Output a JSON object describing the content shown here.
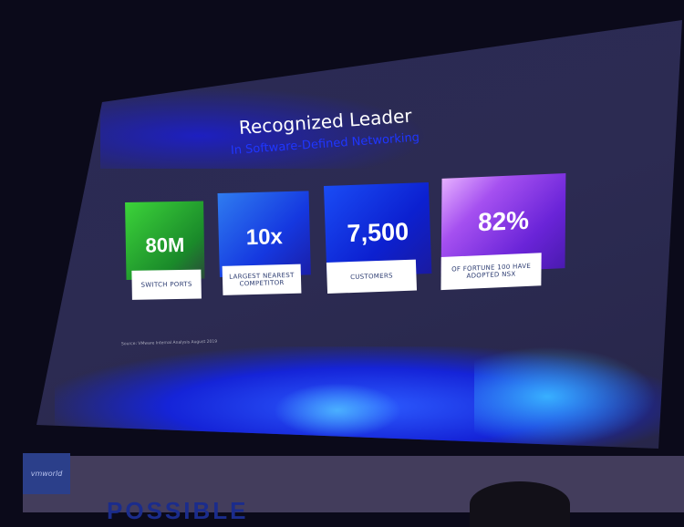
{
  "slide": {
    "title": "Recognized Leader",
    "subtitle": "In Software-Defined Networking",
    "stats": [
      {
        "value": "80M",
        "label": "SWITCH PORTS",
        "color": "#2cb52c"
      },
      {
        "value": "10x",
        "label": "LARGEST NEAREST COMPETITOR",
        "color": "#1e4fe6"
      },
      {
        "value": "7,500",
        "label": "CUSTOMERS",
        "color": "#1233e0"
      },
      {
        "value": "82%",
        "label": "OF FORTUNE 100 HAVE ADOPTED NSX",
        "color": "#8a3ee0"
      }
    ],
    "source": "Source: VMware Internal Analysis August 2019"
  },
  "stage": {
    "logo": "vmworld",
    "banner_text": "POSSIBLE"
  }
}
